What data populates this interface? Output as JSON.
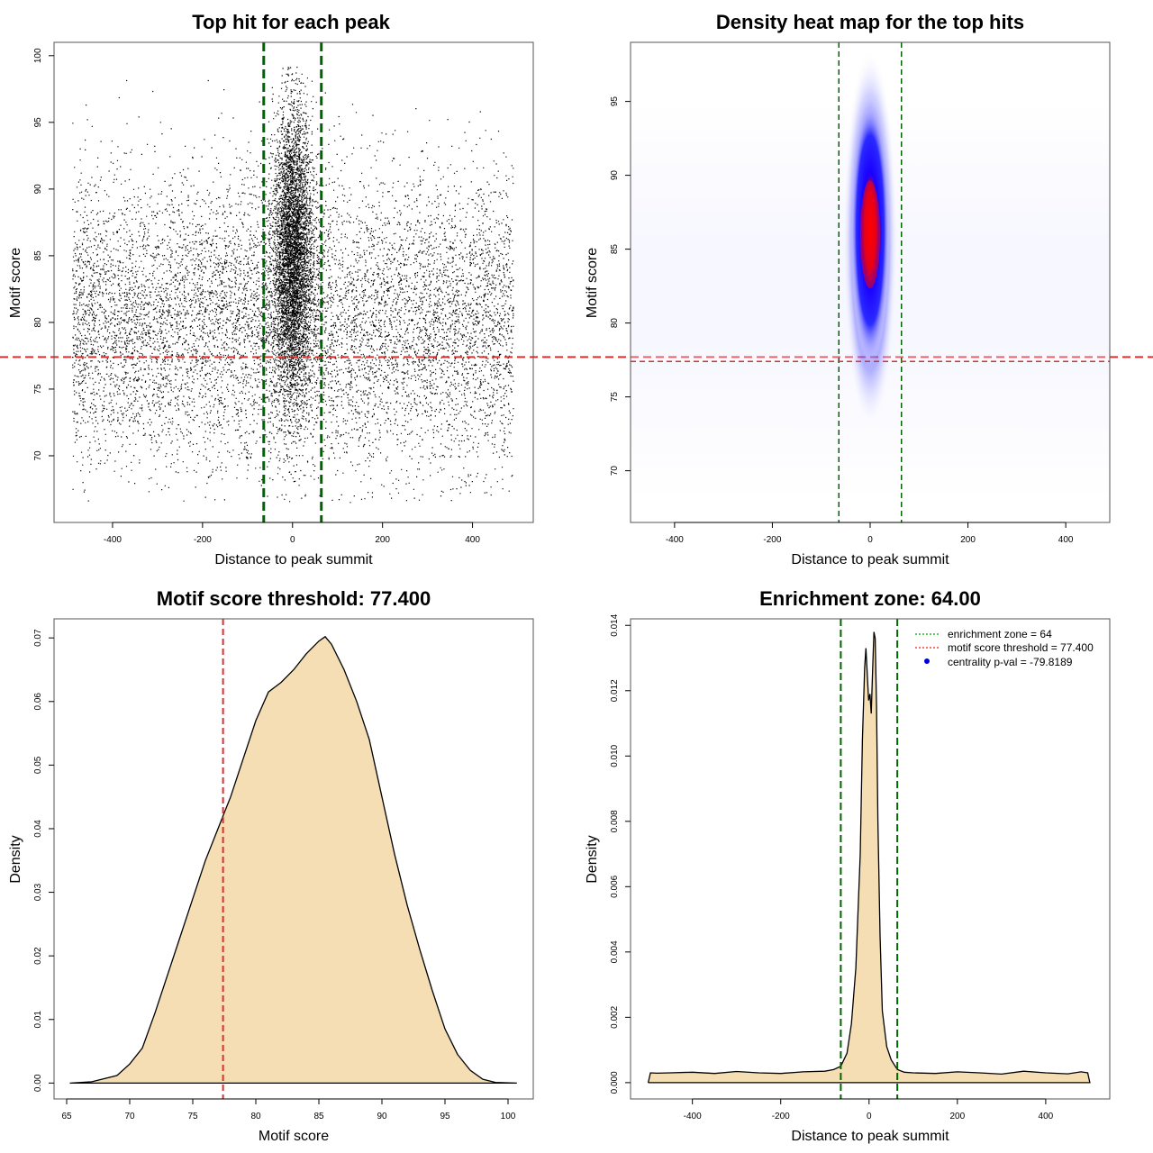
{
  "chart_data": [
    {
      "type": "scatter",
      "title": "Top hit for each peak",
      "xlabel": "Distance to peak summit",
      "ylabel": "Motif score",
      "xlim": [
        -530,
        535
      ],
      "ylim": [
        65,
        101
      ],
      "xticks": [
        -400,
        -200,
        0,
        200,
        400
      ],
      "yticks": [
        70,
        75,
        80,
        85,
        90,
        95,
        100
      ],
      "vlines": [
        -64,
        64
      ],
      "hline": 77.4,
      "point_distribution": {
        "background": {
          "x_range": [
            -490,
            490
          ],
          "y_mean": 80,
          "y_sd": 5.5,
          "n": 9000
        },
        "central": {
          "x_mean": 0,
          "x_sd": 22,
          "y_mean": 85,
          "y_sd": 5.5,
          "n": 16000
        }
      }
    },
    {
      "type": "heatmap",
      "title": "Density heat map for the top hits",
      "xlabel": "Distance to peak summit",
      "ylabel": "Motif score",
      "xlim": [
        -490,
        490
      ],
      "ylim": [
        66.5,
        99
      ],
      "xticks": [
        -400,
        -200,
        0,
        200,
        400
      ],
      "yticks": [
        70,
        75,
        80,
        85,
        90,
        95
      ],
      "vlines": [
        -64,
        64
      ],
      "hline": 77.4,
      "peak": {
        "x": 0,
        "y": 86
      }
    },
    {
      "type": "area",
      "title": "Motif score threshold: 77.400",
      "xlabel": "Motif score",
      "ylabel": "Density",
      "xlim": [
        64,
        102
      ],
      "ylim": [
        -0.0025,
        0.073
      ],
      "xticks": [
        65,
        70,
        75,
        80,
        85,
        90,
        95,
        100
      ],
      "yticks": [
        0.0,
        0.01,
        0.02,
        0.03,
        0.04,
        0.05,
        0.06,
        0.07
      ],
      "vline": 77.4,
      "x": [
        65.3,
        67,
        69,
        70,
        71,
        72,
        73,
        74,
        75,
        76,
        77,
        77.4,
        78,
        79,
        80,
        81,
        82,
        83,
        84,
        85,
        85.5,
        86,
        87,
        88,
        89,
        90,
        91,
        92,
        93,
        94,
        95,
        96,
        97,
        98,
        99,
        100.7
      ],
      "y": [
        0.0,
        0.0002,
        0.0012,
        0.003,
        0.0055,
        0.011,
        0.017,
        0.023,
        0.029,
        0.035,
        0.04,
        0.042,
        0.045,
        0.051,
        0.057,
        0.0615,
        0.063,
        0.065,
        0.0675,
        0.0695,
        0.0702,
        0.069,
        0.065,
        0.06,
        0.054,
        0.045,
        0.036,
        0.028,
        0.021,
        0.0145,
        0.0085,
        0.0045,
        0.002,
        0.0006,
        0.0001,
        0.0
      ]
    },
    {
      "type": "area",
      "title": "Enrichment zone: 64.00",
      "xlabel": "Distance to peak summit",
      "ylabel": "Density",
      "xlim": [
        -540,
        545
      ],
      "ylim": [
        -0.0005,
        0.0142
      ],
      "xticks": [
        -400,
        -200,
        0,
        200,
        400
      ],
      "yticks": [
        0.0,
        0.002,
        0.004,
        0.006,
        0.008,
        0.01,
        0.012,
        0.014
      ],
      "vlines": [
        -64,
        64
      ],
      "x": [
        -500,
        -495,
        -480,
        -450,
        -400,
        -350,
        -300,
        -250,
        -200,
        -150,
        -100,
        -80,
        -64,
        -50,
        -40,
        -30,
        -20,
        -15,
        -10,
        -7,
        -4,
        -1,
        2,
        5,
        8,
        11,
        14,
        17,
        20,
        25,
        30,
        40,
        50,
        64,
        80,
        100,
        150,
        200,
        250,
        300,
        350,
        400,
        450,
        480,
        495,
        500
      ],
      "y": [
        0.0,
        0.0003,
        0.00029,
        0.0003,
        0.00032,
        0.00028,
        0.00034,
        0.0003,
        0.00028,
        0.00033,
        0.00035,
        0.0004,
        0.0005,
        0.0009,
        0.0018,
        0.0035,
        0.007,
        0.0105,
        0.0127,
        0.0133,
        0.0125,
        0.0117,
        0.0119,
        0.0113,
        0.0126,
        0.0138,
        0.0136,
        0.0115,
        0.008,
        0.0045,
        0.0022,
        0.0011,
        0.0007,
        0.0004,
        0.00032,
        0.0003,
        0.00028,
        0.00033,
        0.0003,
        0.00026,
        0.00035,
        0.0003,
        0.00027,
        0.00033,
        0.0003,
        0.0
      ]
    }
  ],
  "legend": {
    "items": [
      {
        "label": "enrichment zone = 64",
        "color": "#00aa00",
        "style": "dotted-line"
      },
      {
        "label": "motif score threshold = 77.400",
        "color": "#ee2222",
        "style": "dotted-line"
      },
      {
        "label": "centrality p-val = -79.8189",
        "color": "#0000dd",
        "style": "dot"
      }
    ]
  },
  "colors": {
    "points": "#000000",
    "enrichment_line": "#006400",
    "threshold_line": "#d93030",
    "density_fill": "#f5deb3",
    "heat_low": "#ffffff",
    "heat_mid": "#0000ff",
    "heat_high": "#ff0000"
  }
}
